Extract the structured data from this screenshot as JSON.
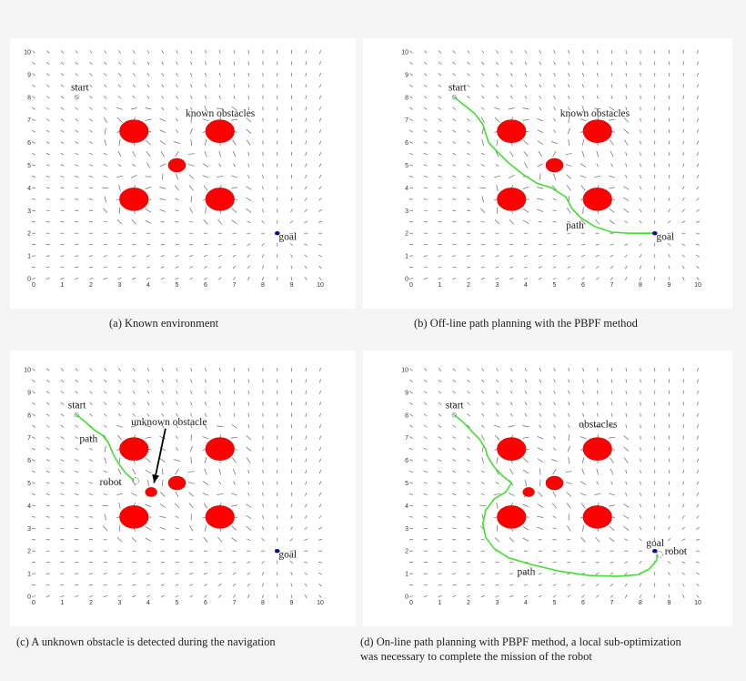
{
  "figure": {
    "background": "#f5f5f5",
    "panel_background": "#ffffff",
    "colors": {
      "obstacle": "#ff0000",
      "path": "#44dd33",
      "goal": "#0a0a9a",
      "arrow": "#333333",
      "unknown_arrow": "#000000"
    }
  },
  "captions": {
    "a": "(a)  Known environment",
    "b": "(b)  Off-line path planning with the PBPF method",
    "c": "(c)  A unknown obstacle is detected during the navigation",
    "d_line1": "(d)  On-line path planning with PBPF method, a local sub-optimization",
    "d_line2": "was necessary to complete the mission of the robot"
  },
  "chart_data": [
    {
      "id": "a",
      "type": "quiver",
      "title": "(a) Known environment",
      "xlim": [
        0,
        10
      ],
      "ylim": [
        0,
        10
      ],
      "xticks": [
        0,
        1,
        2,
        3,
        4,
        5,
        6,
        7,
        8,
        9,
        10
      ],
      "yticks": [
        0,
        1,
        2,
        3,
        4,
        5,
        6,
        7,
        8,
        9,
        10
      ],
      "grid_step": 0.5,
      "start": [
        1.5,
        8.0
      ],
      "goal": [
        8.5,
        2.0
      ],
      "obstacles": [
        {
          "x": 3.5,
          "y": 6.5,
          "r": 0.5,
          "known": true
        },
        {
          "x": 6.5,
          "y": 6.5,
          "r": 0.5,
          "known": true
        },
        {
          "x": 5.0,
          "y": 5.0,
          "r": 0.3,
          "known": true
        },
        {
          "x": 3.5,
          "y": 3.5,
          "r": 0.5,
          "known": true
        },
        {
          "x": 6.5,
          "y": 3.5,
          "r": 0.5,
          "known": true
        }
      ],
      "path": [],
      "annotations": [
        {
          "text": "start",
          "x": 1.3,
          "y": 8.3
        },
        {
          "text": "known obstacles",
          "x": 5.3,
          "y": 7.15
        },
        {
          "text": "goal",
          "x": 8.55,
          "y": 1.7
        }
      ]
    },
    {
      "id": "b",
      "type": "quiver",
      "title": "(b) Off-line path planning with the PBPF method",
      "xlim": [
        0,
        10
      ],
      "ylim": [
        0,
        10
      ],
      "xticks": [
        0,
        1,
        2,
        3,
        4,
        5,
        6,
        7,
        8,
        9,
        10
      ],
      "yticks": [
        0,
        1,
        2,
        3,
        4,
        5,
        6,
        7,
        8,
        9,
        10
      ],
      "grid_step": 0.5,
      "start": [
        1.5,
        8.0
      ],
      "goal": [
        8.5,
        2.0
      ],
      "obstacles": [
        {
          "x": 3.5,
          "y": 6.5,
          "r": 0.5,
          "known": true
        },
        {
          "x": 6.5,
          "y": 6.5,
          "r": 0.5,
          "known": true
        },
        {
          "x": 5.0,
          "y": 5.0,
          "r": 0.3,
          "known": true
        },
        {
          "x": 3.5,
          "y": 3.5,
          "r": 0.5,
          "known": true
        },
        {
          "x": 6.5,
          "y": 3.5,
          "r": 0.5,
          "known": true
        }
      ],
      "path": [
        [
          1.5,
          8.0
        ],
        [
          1.8,
          7.7
        ],
        [
          2.2,
          7.3
        ],
        [
          2.5,
          6.8
        ],
        [
          2.6,
          6.4
        ],
        [
          2.7,
          6.0
        ],
        [
          3.0,
          5.6
        ],
        [
          3.4,
          5.1
        ],
        [
          3.9,
          4.6
        ],
        [
          4.4,
          4.2
        ],
        [
          4.9,
          4.0
        ],
        [
          5.4,
          3.6
        ],
        [
          5.6,
          3.1
        ],
        [
          5.9,
          2.7
        ],
        [
          6.4,
          2.3
        ],
        [
          7.0,
          2.05
        ],
        [
          7.6,
          2.0
        ],
        [
          8.5,
          2.0
        ]
      ],
      "annotations": [
        {
          "text": "start",
          "x": 1.3,
          "y": 8.3
        },
        {
          "text": "known obstacles",
          "x": 5.2,
          "y": 7.15
        },
        {
          "text": "path",
          "x": 5.4,
          "y": 2.2
        },
        {
          "text": "goal",
          "x": 8.55,
          "y": 1.7
        }
      ]
    },
    {
      "id": "c",
      "type": "quiver",
      "title": "(c) A unknown obstacle is detected during the navigation",
      "xlim": [
        0,
        10
      ],
      "ylim": [
        0,
        10
      ],
      "xticks": [
        0,
        1,
        2,
        3,
        4,
        5,
        6,
        7,
        8,
        9,
        10
      ],
      "yticks": [
        0,
        1,
        2,
        3,
        4,
        5,
        6,
        7,
        8,
        9,
        10
      ],
      "grid_step": 0.5,
      "start": [
        1.5,
        8.0
      ],
      "goal": [
        8.5,
        2.0
      ],
      "robot": [
        3.5,
        5.1
      ],
      "obstacles": [
        {
          "x": 3.5,
          "y": 6.5,
          "r": 0.5,
          "known": true
        },
        {
          "x": 6.5,
          "y": 6.5,
          "r": 0.5,
          "known": true
        },
        {
          "x": 5.0,
          "y": 5.0,
          "r": 0.3,
          "known": true
        },
        {
          "x": 3.5,
          "y": 3.5,
          "r": 0.5,
          "known": true
        },
        {
          "x": 6.5,
          "y": 3.5,
          "r": 0.5,
          "known": true
        },
        {
          "x": 4.1,
          "y": 4.6,
          "r": 0.2,
          "known": false
        }
      ],
      "path": [
        [
          1.5,
          8.0
        ],
        [
          1.8,
          7.7
        ],
        [
          2.1,
          7.35
        ],
        [
          2.4,
          7.1
        ],
        [
          2.6,
          6.8
        ],
        [
          2.7,
          6.5
        ],
        [
          2.8,
          6.2
        ],
        [
          3.0,
          5.8
        ],
        [
          3.2,
          5.45
        ],
        [
          3.5,
          5.1
        ]
      ],
      "arrow": {
        "from": [
          4.6,
          7.4
        ],
        "to": [
          4.2,
          5.0
        ]
      },
      "annotations": [
        {
          "text": "start",
          "x": 1.2,
          "y": 8.3
        },
        {
          "text": "unknown obstacle",
          "x": 3.4,
          "y": 7.55
        },
        {
          "text": "path",
          "x": 1.6,
          "y": 6.8
        },
        {
          "text": "robot",
          "x": 2.3,
          "y": 4.9
        },
        {
          "text": "goal",
          "x": 8.55,
          "y": 1.7
        }
      ]
    },
    {
      "id": "d",
      "type": "quiver",
      "title": "(d) On-line path planning with PBPF method, a local sub-optimization was necessary to complete the mission of the robot",
      "xlim": [
        0,
        10
      ],
      "ylim": [
        0,
        10
      ],
      "xticks": [
        0,
        1,
        2,
        3,
        4,
        5,
        6,
        7,
        8,
        9,
        10
      ],
      "yticks": [
        0,
        1,
        2,
        3,
        4,
        5,
        6,
        7,
        8,
        9,
        10
      ],
      "grid_step": 0.5,
      "start": [
        1.5,
        8.0
      ],
      "goal": [
        8.5,
        2.0
      ],
      "robot": [
        8.6,
        1.85
      ],
      "obstacles": [
        {
          "x": 3.5,
          "y": 6.5,
          "r": 0.5,
          "known": true
        },
        {
          "x": 6.5,
          "y": 6.5,
          "r": 0.5,
          "known": true
        },
        {
          "x": 5.0,
          "y": 5.0,
          "r": 0.3,
          "known": true
        },
        {
          "x": 3.5,
          "y": 3.5,
          "r": 0.5,
          "known": true
        },
        {
          "x": 6.5,
          "y": 3.5,
          "r": 0.5,
          "known": true
        },
        {
          "x": 4.1,
          "y": 4.6,
          "r": 0.2,
          "known": false
        }
      ],
      "path": [
        [
          1.5,
          8.0
        ],
        [
          1.8,
          7.7
        ],
        [
          2.1,
          7.3
        ],
        [
          2.4,
          6.9
        ],
        [
          2.6,
          6.5
        ],
        [
          2.65,
          6.2
        ],
        [
          2.9,
          5.7
        ],
        [
          3.2,
          5.3
        ],
        [
          3.5,
          5.0
        ],
        [
          3.3,
          4.6
        ],
        [
          2.9,
          4.3
        ],
        [
          2.6,
          3.8
        ],
        [
          2.5,
          3.2
        ],
        [
          2.6,
          2.6
        ],
        [
          2.9,
          2.1
        ],
        [
          3.4,
          1.7
        ],
        [
          4.2,
          1.4
        ],
        [
          5.2,
          1.1
        ],
        [
          6.2,
          0.92
        ],
        [
          7.2,
          0.88
        ],
        [
          7.9,
          0.95
        ],
        [
          8.3,
          1.2
        ],
        [
          8.55,
          1.55
        ],
        [
          8.6,
          1.85
        ]
      ],
      "annotations": [
        {
          "text": "start",
          "x": 1.2,
          "y": 8.3
        },
        {
          "text": "obstacles",
          "x": 5.85,
          "y": 7.45
        },
        {
          "text": "path",
          "x": 3.7,
          "y": 0.95
        },
        {
          "text": "goal",
          "x": 8.2,
          "y": 2.2
        },
        {
          "text": "robot",
          "x": 8.85,
          "y": 1.85
        }
      ]
    }
  ]
}
